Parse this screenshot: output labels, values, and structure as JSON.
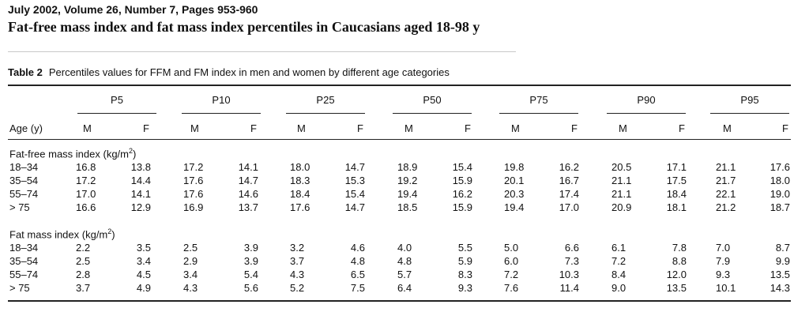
{
  "header": {
    "journal": "July 2002, Volume 26, Number 7, Pages 953-960",
    "title": "Fat-free mass index and fat mass index percentiles in Caucasians aged 18-98 y"
  },
  "table": {
    "caption_label": "Table 2",
    "caption_text": "Percentiles values for FFM and FM index in men and women by different age categories",
    "age_header": "Age (y)",
    "percentiles": [
      "P5",
      "P10",
      "P25",
      "P50",
      "P75",
      "P90",
      "P95"
    ],
    "sex_labels": [
      "M",
      "F"
    ],
    "sections": [
      {
        "title": "Fat-free mass index (kg/m",
        "unit_sup": "2",
        "title_end": ")",
        "rows": [
          {
            "age": "18–34",
            "values": [
              "16.8",
              "13.8",
              "17.2",
              "14.1",
              "18.0",
              "14.7",
              "18.9",
              "15.4",
              "19.8",
              "16.2",
              "20.5",
              "17.1",
              "21.1",
              "17.6"
            ]
          },
          {
            "age": "35–54",
            "values": [
              "17.2",
              "14.4",
              "17.6",
              "14.7",
              "18.3",
              "15.3",
              "19.2",
              "15.9",
              "20.1",
              "16.7",
              "21.1",
              "17.5",
              "21.7",
              "18.0"
            ]
          },
          {
            "age": "55–74",
            "values": [
              "17.0",
              "14.1",
              "17.6",
              "14.6",
              "18.4",
              "15.4",
              "19.4",
              "16.2",
              "20.3",
              "17.4",
              "21.1",
              "18.4",
              "22.1",
              "19.0"
            ]
          },
          {
            "age": "> 75",
            "values": [
              "16.6",
              "12.9",
              "16.9",
              "13.7",
              "17.6",
              "14.7",
              "18.5",
              "15.9",
              "19.4",
              "17.0",
              "20.9",
              "18.1",
              "21.2",
              "18.7"
            ]
          }
        ]
      },
      {
        "title": "Fat mass index (kg/m",
        "unit_sup": "2",
        "title_end": ")",
        "rows": [
          {
            "age": "18–34",
            "values": [
              "2.2",
              "3.5",
              "2.5",
              "3.9",
              "3.2",
              "4.6",
              "4.0",
              "5.5",
              "5.0",
              "6.6",
              "6.1",
              "7.8",
              "7.0",
              "8.7"
            ]
          },
          {
            "age": "35–54",
            "values": [
              "2.5",
              "3.4",
              "2.9",
              "3.9",
              "3.7",
              "4.8",
              "4.8",
              "5.9",
              "6.0",
              "7.3",
              "7.2",
              "8.8",
              "7.9",
              "9.9"
            ]
          },
          {
            "age": "55–74",
            "values": [
              "2.8",
              "4.5",
              "3.4",
              "5.4",
              "4.3",
              "6.5",
              "5.7",
              "8.3",
              "7.2",
              "10.3",
              "8.4",
              "12.0",
              "9.3",
              "13.5"
            ]
          },
          {
            "age": "> 75",
            "values": [
              "3.7",
              "4.9",
              "4.3",
              "5.6",
              "5.2",
              "7.5",
              "6.4",
              "9.3",
              "7.6",
              "11.4",
              "9.0",
              "13.5",
              "10.1",
              "14.3"
            ]
          }
        ]
      }
    ]
  }
}
